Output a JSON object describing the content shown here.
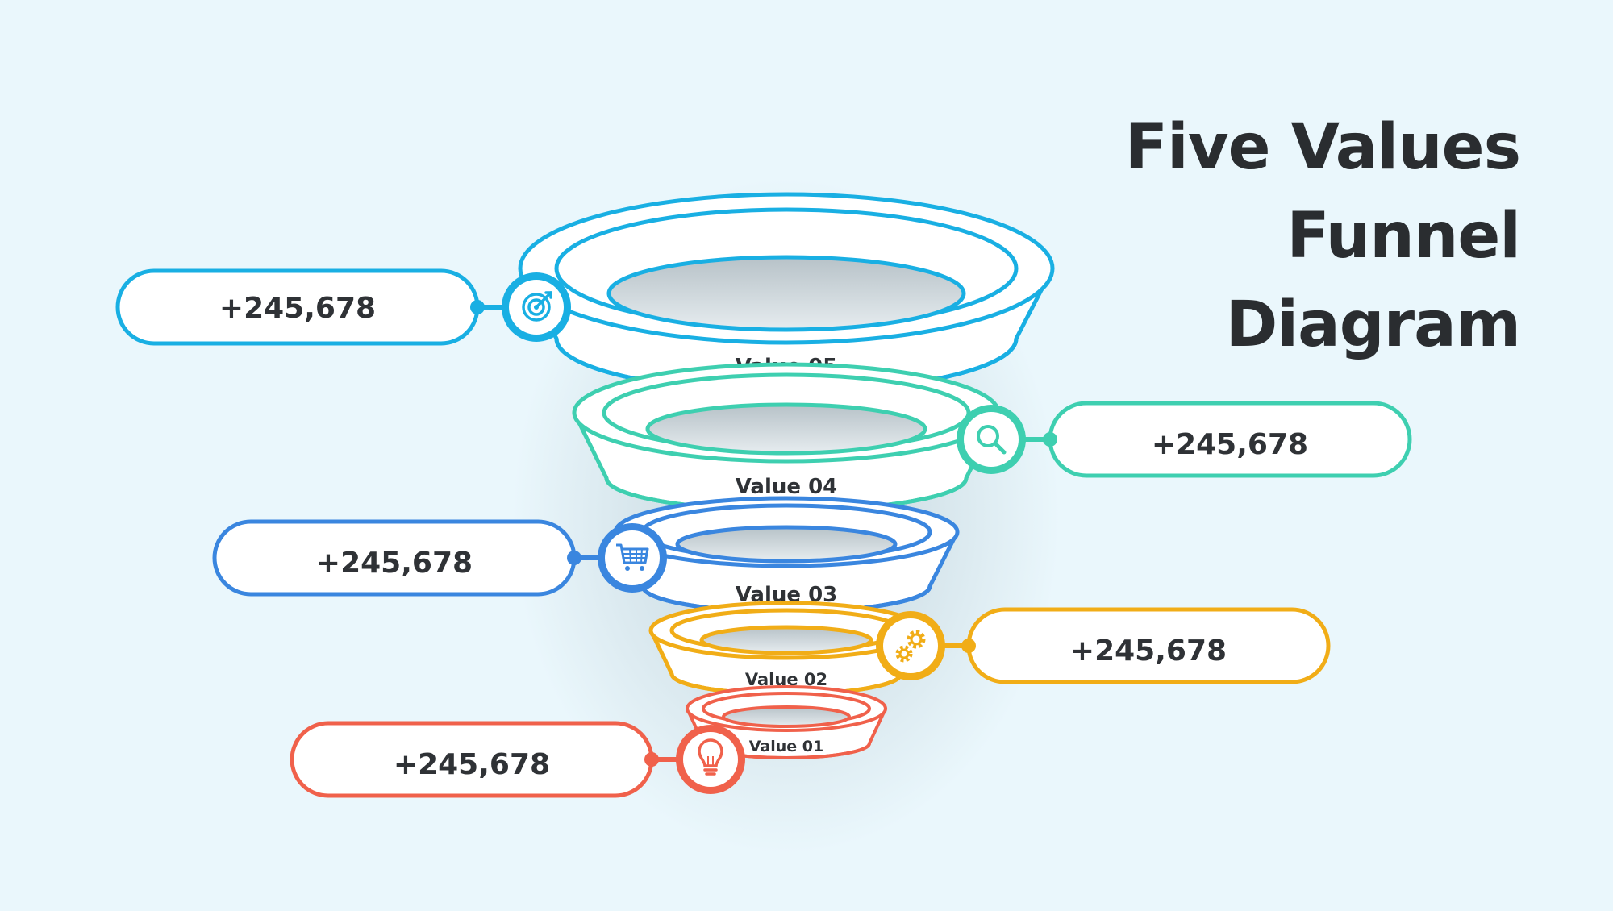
{
  "title": {
    "line1": "Five Values",
    "line2": "Funnel",
    "line3": "Diagram"
  },
  "levels": [
    {
      "label": "Value 05",
      "value": "+245,678",
      "color": "#19afe3",
      "icon": "target-icon",
      "side": "left"
    },
    {
      "label": "Value 04",
      "value": "+245,678",
      "color": "#3ecfb0",
      "icon": "search-icon",
      "side": "right"
    },
    {
      "label": "Value 03",
      "value": "+245,678",
      "color": "#3a86df",
      "icon": "cart-icon",
      "side": "left"
    },
    {
      "label": "Value 02",
      "value": "+245,678",
      "color": "#f1ad17",
      "icon": "gears-icon",
      "side": "right"
    },
    {
      "label": "Value 01",
      "value": "+245,678",
      "color": "#f0614b",
      "icon": "lightbulb-icon",
      "side": "left"
    }
  ]
}
